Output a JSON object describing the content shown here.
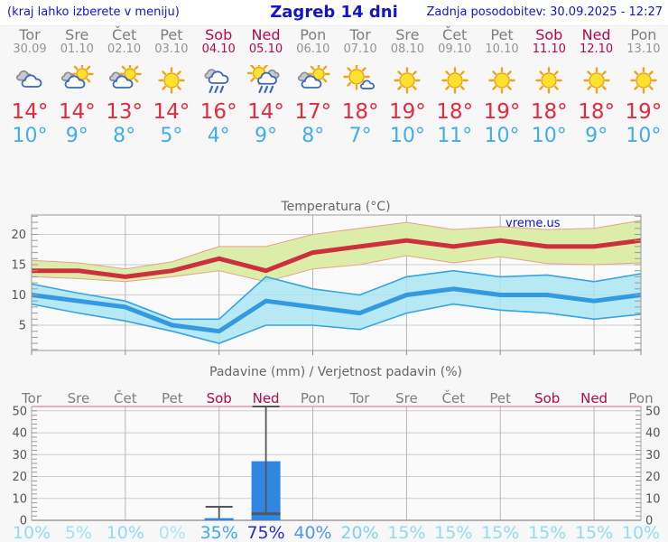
{
  "header": {
    "left_note": "(kraj lahko izberete v meniju)",
    "title": "Zagreb 14 dni",
    "updated": "Zadnja posodobitev: 30.09.2025 - 12:27"
  },
  "days": [
    {
      "name": "Tor",
      "date": "30.09",
      "weekend": false,
      "icon": "cloudy",
      "tmax": "14°",
      "tmin": "10°",
      "pop": "10%",
      "pop_color": "#8edcf6"
    },
    {
      "name": "Sre",
      "date": "01.10",
      "weekend": false,
      "icon": "partly-cloudy",
      "tmax": "14°",
      "tmin": "9°",
      "pop": "5%",
      "pop_color": "#9ce2f8"
    },
    {
      "name": "Čet",
      "date": "02.10",
      "weekend": false,
      "icon": "partly-cloudy",
      "tmax": "13°",
      "tmin": "8°",
      "pop": "10%",
      "pop_color": "#8edcf6"
    },
    {
      "name": "Pet",
      "date": "03.10",
      "weekend": false,
      "icon": "sunny",
      "tmax": "14°",
      "tmin": "5°",
      "pop": "0%",
      "pop_color": "#a8e6f9"
    },
    {
      "name": "Sob",
      "date": "04.10",
      "weekend": true,
      "icon": "rain",
      "tmax": "16°",
      "tmin": "4°",
      "pop": "35%",
      "pop_color": "#3aabf2"
    },
    {
      "name": "Ned",
      "date": "05.10",
      "weekend": true,
      "icon": "sun-rain",
      "tmax": "14°",
      "tmin": "9°",
      "pop": "75%",
      "pop_color": "#2330d6"
    },
    {
      "name": "Pon",
      "date": "06.10",
      "weekend": false,
      "icon": "partly-cloudy",
      "tmax": "17°",
      "tmin": "8°",
      "pop": "40%",
      "pop_color": "#4f97ee"
    },
    {
      "name": "Tor",
      "date": "07.10",
      "weekend": false,
      "icon": "mostly-sunny",
      "tmax": "18°",
      "tmin": "7°",
      "pop": "20%",
      "pop_color": "#7fd2f2"
    },
    {
      "name": "Sre",
      "date": "08.10",
      "weekend": false,
      "icon": "sunny",
      "tmax": "19°",
      "tmin": "10°",
      "pop": "15%",
      "pop_color": "#8edcf6"
    },
    {
      "name": "Čet",
      "date": "09.10",
      "weekend": false,
      "icon": "sunny",
      "tmax": "18°",
      "tmin": "11°",
      "pop": "15%",
      "pop_color": "#8edcf6"
    },
    {
      "name": "Pet",
      "date": "10.10",
      "weekend": false,
      "icon": "sunny",
      "tmax": "19°",
      "tmin": "10°",
      "pop": "15%",
      "pop_color": "#8edcf6"
    },
    {
      "name": "Sob",
      "date": "11.10",
      "weekend": true,
      "icon": "sunny",
      "tmax": "18°",
      "tmin": "10°",
      "pop": "15%",
      "pop_color": "#8edcf6"
    },
    {
      "name": "Ned",
      "date": "12.10",
      "weekend": true,
      "icon": "sunny",
      "tmax": "18°",
      "tmin": "9°",
      "pop": "15%",
      "pop_color": "#8edcf6"
    },
    {
      "name": "Pon",
      "date": "13.10",
      "weekend": false,
      "icon": "sunny",
      "tmax": "19°",
      "tmin": "10°",
      "pop": "10%",
      "pop_color": "#8edcf6"
    }
  ],
  "chart_data": [
    {
      "type": "area",
      "title": "Temperatura (°C)",
      "watermark": "vreme.us",
      "x_labels": [
        "Tor",
        "Sre",
        "Čet",
        "Pet",
        "Sob",
        "Ned",
        "Pon",
        "Tor",
        "Sre",
        "Čet",
        "Pet",
        "Sob",
        "Ned",
        "Pon"
      ],
      "ylim": [
        0.8,
        23.2
      ],
      "yticks": [
        5,
        10,
        15,
        20
      ],
      "grid_x_indices": [
        2,
        4,
        6,
        8,
        10,
        12
      ],
      "series": [
        {
          "name": "tmax",
          "color": "#cc2f3e",
          "values": [
            14,
            14,
            13,
            14,
            16,
            14,
            17,
            18,
            19,
            18,
            19,
            18,
            18,
            19
          ]
        },
        {
          "name": "tmax_band_upper",
          "values": [
            15.7,
            15.3,
            14.3,
            15.5,
            18,
            18,
            20,
            21,
            22,
            20.8,
            21.3,
            20.8,
            21,
            22.3
          ]
        },
        {
          "name": "tmax_band_lower",
          "values": [
            13,
            12.7,
            12.2,
            13,
            14,
            12.2,
            14.3,
            15,
            16.5,
            15.3,
            16.3,
            15.2,
            15,
            15.3
          ]
        },
        {
          "name": "tmin",
          "color": "#3399e0",
          "values": [
            10,
            9,
            8,
            5,
            4,
            9,
            8,
            7,
            10,
            11,
            10,
            10,
            9,
            10
          ]
        },
        {
          "name": "tmin_band_upper",
          "values": [
            11.8,
            10.3,
            9,
            6,
            6,
            13,
            11,
            10,
            13,
            14,
            13,
            13.3,
            12.2,
            13.5
          ]
        },
        {
          "name": "tmin_band_lower",
          "values": [
            8.5,
            7,
            5.7,
            4,
            2,
            5,
            5,
            4.3,
            7,
            8.5,
            7.5,
            7,
            6,
            6.8
          ]
        }
      ],
      "band_colors": {
        "max": "#dcedaa",
        "max_edge": "#e8a284",
        "min": "#a9e5f2",
        "min_edge": "#35a4e4",
        "overlap": "#84cf84"
      }
    },
    {
      "type": "bar",
      "title": "Padavine (mm) / Verjetnost padavin (%)",
      "ylim": [
        0,
        52
      ],
      "yticks": [
        0,
        10,
        20,
        30,
        40,
        50
      ],
      "grid_x_indices": [
        2,
        4,
        6,
        8,
        10,
        12
      ],
      "bar_color": "#2f87e3",
      "whisker_color": "#555555",
      "bars": [
        {
          "index": 4,
          "value": 1,
          "whisker_high": 6.2,
          "whisker_low": null
        },
        {
          "index": 5,
          "value": 27,
          "whisker_high": 52,
          "whisker_low": 3
        }
      ],
      "pop_labels": [
        "10%",
        "5%",
        "10%",
        "0%",
        "35%",
        "75%",
        "40%",
        "20%",
        "15%",
        "15%",
        "15%",
        "15%",
        "15%",
        "10%"
      ]
    }
  ]
}
